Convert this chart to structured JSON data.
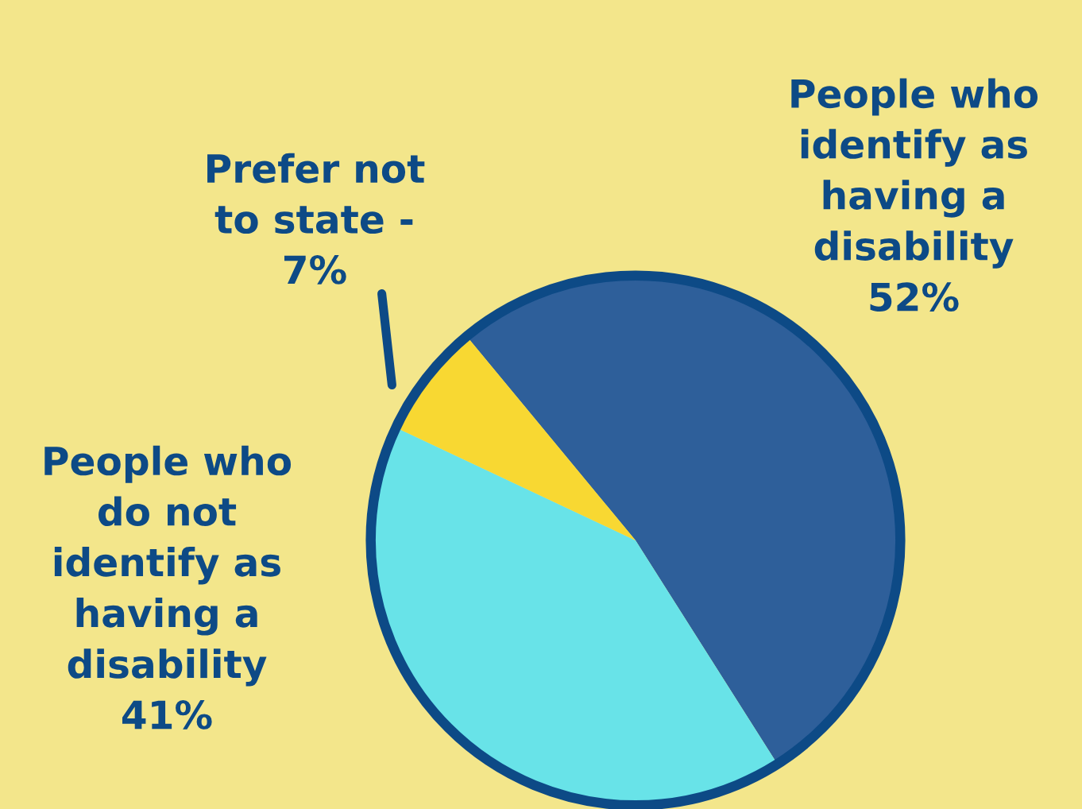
{
  "chart_data": {
    "type": "pie",
    "categories": [
      "People who\nidentify as\nhaving a\ndisability",
      "People who\ndo not\nidentify as\nhaving a\ndisability",
      "Prefer not\nto state -"
    ],
    "values": [
      52,
      41,
      7
    ],
    "value_labels": [
      "52%",
      "41%",
      "7%"
    ],
    "colors": [
      "#2e5f9a",
      "#68e3e8",
      "#f8d832"
    ]
  }
}
